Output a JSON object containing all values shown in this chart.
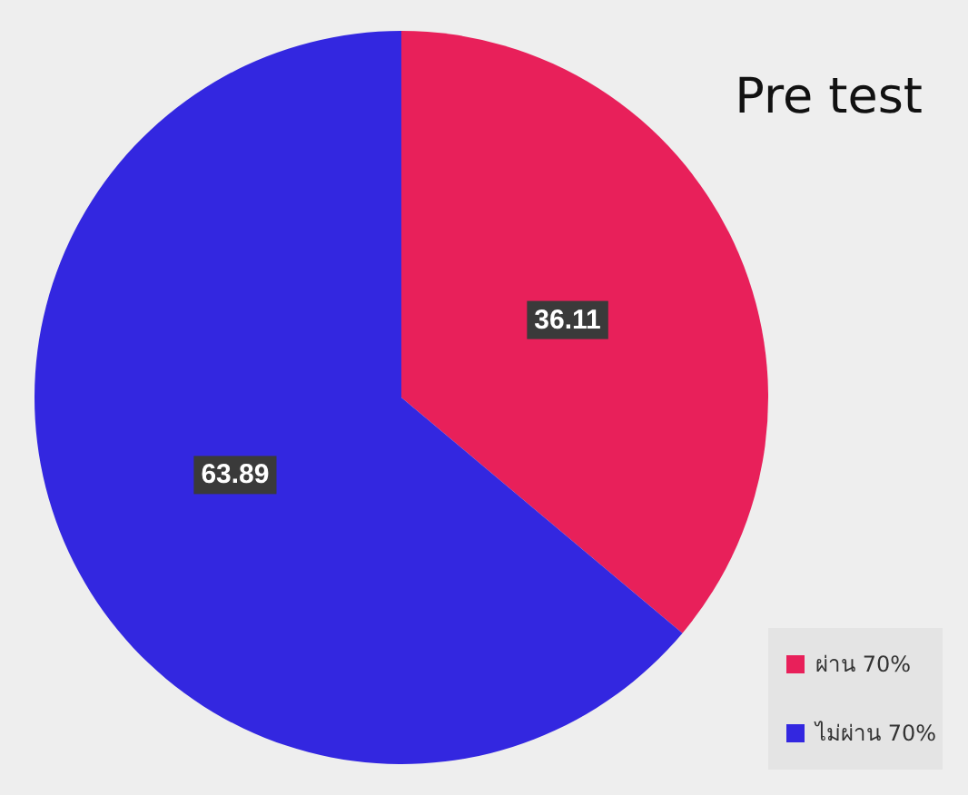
{
  "chart_data": {
    "type": "pie",
    "title": "Pre test",
    "categories": [
      "ผ่าน 70%",
      "ไม่ผ่าน 70%"
    ],
    "values": [
      36.11,
      63.89
    ],
    "colors": [
      "#e8205a",
      "#3327e0"
    ],
    "data_labels": true,
    "legend": "bottom right"
  }
}
